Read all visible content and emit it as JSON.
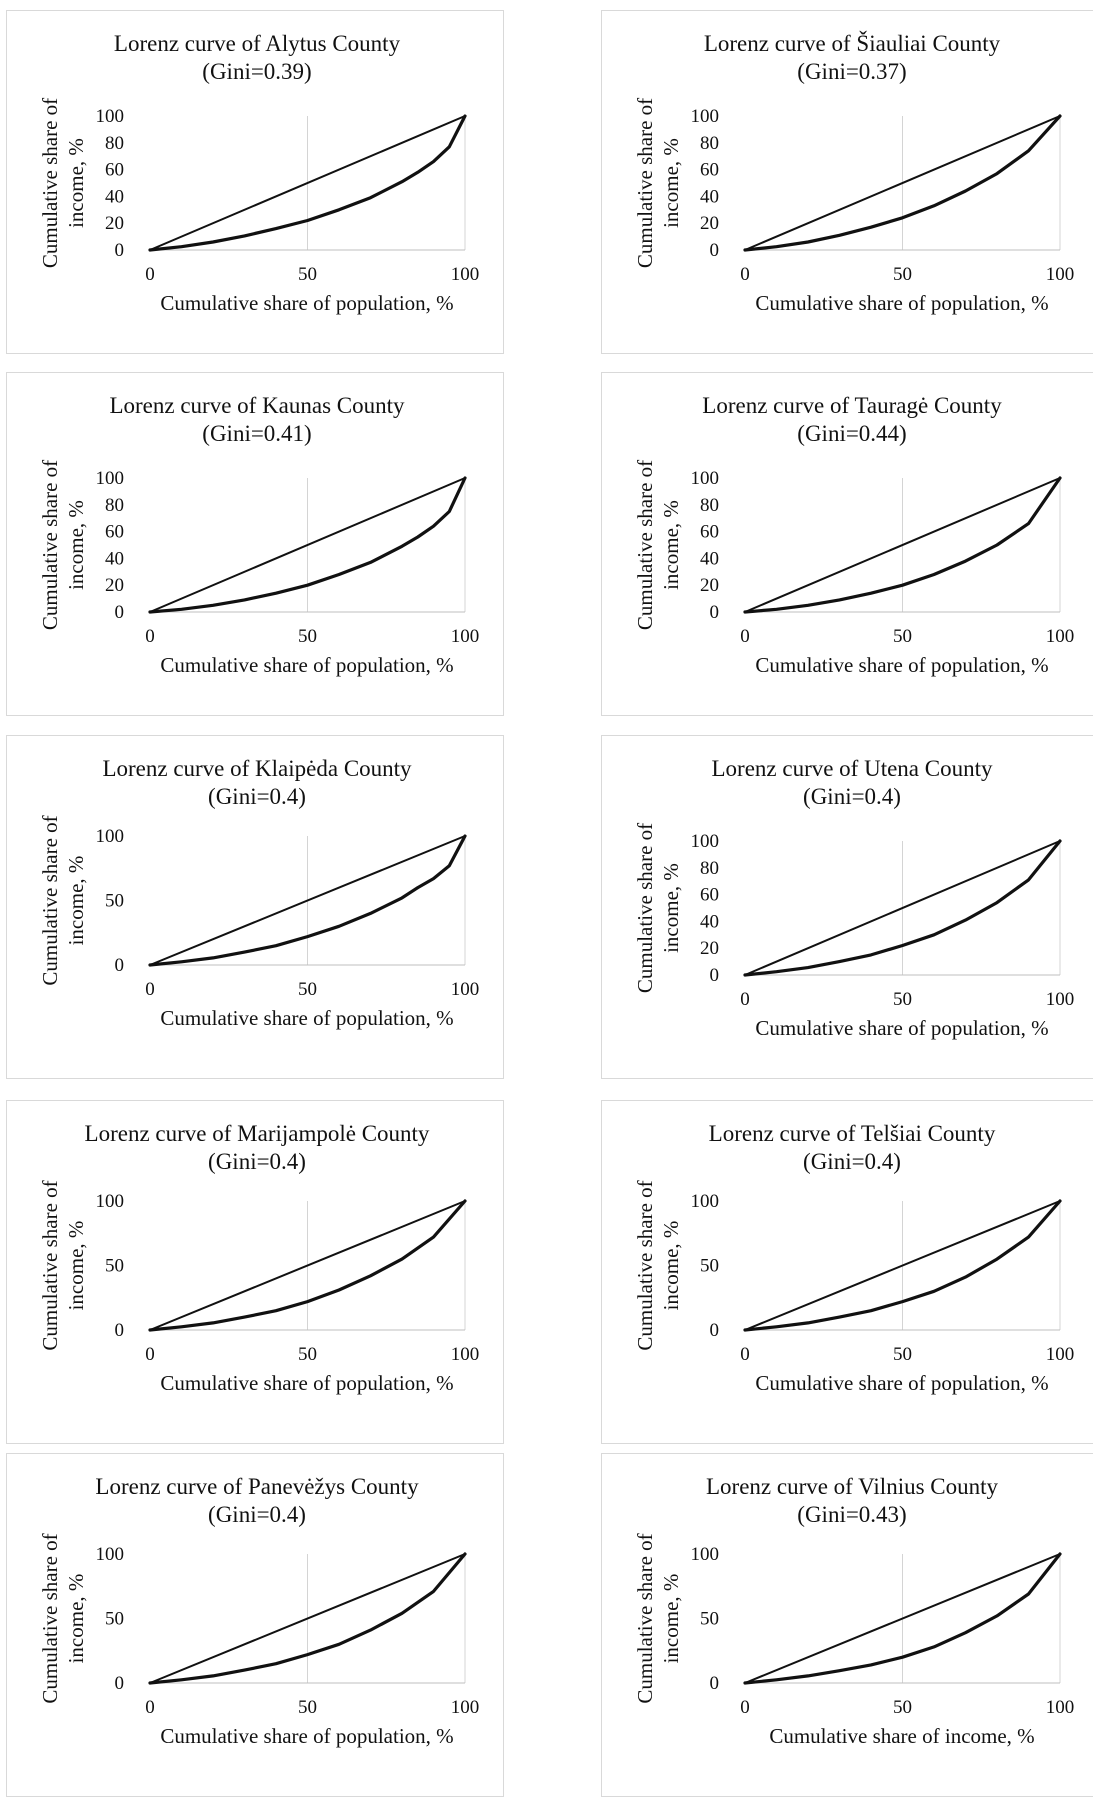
{
  "chart_data": [
    {
      "type": "line",
      "title": "Lorenz curve of Alytus County",
      "subtitle": "(Gini=0.39)",
      "xlabel": "Cumulative share of population, %",
      "ylabel_lines": [
        "Cumulative share of",
        "income, %"
      ],
      "xlim": [
        0,
        100
      ],
      "ylim": [
        0,
        100
      ],
      "xticks": [
        0,
        50,
        100
      ],
      "yticks": [
        0,
        20,
        40,
        60,
        80,
        100
      ],
      "grid": "vertical",
      "series": [
        {
          "x": [
            0,
            100
          ],
          "y": [
            0,
            100
          ]
        },
        {
          "x": [
            0,
            10,
            20,
            30,
            40,
            50,
            60,
            70,
            80,
            85,
            90,
            95,
            100
          ],
          "y": [
            0,
            2.5,
            6,
            10.5,
            16,
            22,
            30,
            39,
            51,
            58,
            66,
            77,
            100
          ]
        }
      ]
    },
    {
      "type": "line",
      "title": "Lorenz curve of Šiauliai County",
      "subtitle": "(Gini=0.37)",
      "xlabel": "Cumulative share of population, %",
      "ylabel_lines": [
        "Cumulative share of",
        "income, %"
      ],
      "xlim": [
        0,
        100
      ],
      "ylim": [
        0,
        100
      ],
      "xticks": [
        0,
        50,
        100
      ],
      "yticks": [
        0,
        20,
        40,
        60,
        80,
        100
      ],
      "grid": "vertical",
      "series": [
        {
          "x": [
            0,
            100
          ],
          "y": [
            0,
            100
          ]
        },
        {
          "x": [
            0,
            10,
            20,
            30,
            40,
            50,
            60,
            70,
            80,
            90,
            100
          ],
          "y": [
            0,
            2.5,
            6,
            11,
            17,
            24,
            33,
            44,
            57,
            74,
            100
          ]
        }
      ]
    },
    {
      "type": "line",
      "title": "Lorenz curve of Kaunas County",
      "subtitle": "(Gini=0.41)",
      "xlabel": "Cumulative share of population, %",
      "ylabel_lines": [
        "Cumulative share of",
        "income, %"
      ],
      "xlim": [
        0,
        100
      ],
      "ylim": [
        0,
        100
      ],
      "xticks": [
        0,
        50,
        100
      ],
      "yticks": [
        0,
        20,
        40,
        60,
        80,
        100
      ],
      "grid": "vertical",
      "series": [
        {
          "x": [
            0,
            100
          ],
          "y": [
            0,
            100
          ]
        },
        {
          "x": [
            0,
            10,
            20,
            30,
            40,
            50,
            60,
            70,
            80,
            85,
            90,
            95,
            100
          ],
          "y": [
            0,
            2,
            5,
            9,
            14,
            20,
            28,
            37,
            49,
            56,
            64,
            75,
            100
          ]
        }
      ]
    },
    {
      "type": "line",
      "title": "Lorenz curve of Tauragė County",
      "subtitle": "(Gini=0.44)",
      "xlabel": "Cumulative share of population, %",
      "ylabel_lines": [
        "Cumulative share of",
        "income, %"
      ],
      "xlim": [
        0,
        100
      ],
      "ylim": [
        0,
        100
      ],
      "xticks": [
        0,
        50,
        100
      ],
      "yticks": [
        0,
        20,
        40,
        60,
        80,
        100
      ],
      "grid": "vertical",
      "series": [
        {
          "x": [
            0,
            100
          ],
          "y": [
            0,
            100
          ]
        },
        {
          "x": [
            0,
            10,
            20,
            30,
            40,
            50,
            60,
            70,
            80,
            90,
            100
          ],
          "y": [
            0,
            2,
            5,
            9,
            14,
            20,
            28,
            38,
            50,
            66,
            100
          ]
        }
      ]
    },
    {
      "type": "line",
      "title": "Lorenz curve of Klaipėda County",
      "subtitle": "(Gini=0.4)",
      "xlabel": "Cumulative share of population, %",
      "ylabel_lines": [
        "Cumulative share of",
        "income, %"
      ],
      "xlim": [
        0,
        100
      ],
      "ylim": [
        0,
        100
      ],
      "xticks": [
        0,
        50,
        100
      ],
      "yticks": [
        0,
        50,
        100
      ],
      "grid": "vertical",
      "series": [
        {
          "x": [
            0,
            100
          ],
          "y": [
            0,
            100
          ]
        },
        {
          "x": [
            0,
            10,
            20,
            30,
            40,
            50,
            60,
            70,
            80,
            85,
            90,
            95,
            100
          ],
          "y": [
            0,
            2.5,
            5.5,
            10,
            15,
            22,
            30,
            40,
            52,
            60,
            67,
            77,
            100
          ]
        }
      ]
    },
    {
      "type": "line",
      "title": "Lorenz curve of Utena County",
      "subtitle": "(Gini=0.4)",
      "xlabel": "Cumulative share of population, %",
      "ylabel_lines": [
        "Cumulative share of",
        "income, %"
      ],
      "xlim": [
        0,
        100
      ],
      "ylim": [
        0,
        100
      ],
      "xticks": [
        0,
        50,
        100
      ],
      "yticks": [
        0,
        20,
        40,
        60,
        80,
        100
      ],
      "grid": "vertical",
      "series": [
        {
          "x": [
            0,
            100
          ],
          "y": [
            0,
            100
          ]
        },
        {
          "x": [
            0,
            10,
            20,
            30,
            40,
            50,
            60,
            70,
            80,
            90,
            100
          ],
          "y": [
            0,
            2.5,
            5.5,
            10,
            15,
            22,
            30,
            41,
            54,
            71,
            100
          ]
        }
      ]
    },
    {
      "type": "line",
      "title": "Lorenz curve of Marijampolė County",
      "subtitle": "(Gini=0.4)",
      "xlabel": "Cumulative share of population, %",
      "ylabel_lines": [
        "Cumulative share of",
        "income, %"
      ],
      "xlim": [
        0,
        100
      ],
      "ylim": [
        0,
        100
      ],
      "xticks": [
        0,
        50,
        100
      ],
      "yticks": [
        0,
        50,
        100
      ],
      "grid": "vertical",
      "series": [
        {
          "x": [
            0,
            100
          ],
          "y": [
            0,
            100
          ]
        },
        {
          "x": [
            0,
            10,
            20,
            30,
            40,
            50,
            60,
            70,
            80,
            90,
            100
          ],
          "y": [
            0,
            2.5,
            5.5,
            10,
            15,
            22,
            31,
            42,
            55,
            72,
            100
          ]
        }
      ]
    },
    {
      "type": "line",
      "title": "Lorenz curve of Telšiai County",
      "subtitle": "(Gini=0.4)",
      "xlabel": "Cumulative share of population, %",
      "ylabel_lines": [
        "Cumulative share of",
        "income, %"
      ],
      "xlim": [
        0,
        100
      ],
      "ylim": [
        0,
        100
      ],
      "xticks": [
        0,
        50,
        100
      ],
      "yticks": [
        0,
        50,
        100
      ],
      "grid": "vertical",
      "series": [
        {
          "x": [
            0,
            100
          ],
          "y": [
            0,
            100
          ]
        },
        {
          "x": [
            0,
            10,
            20,
            30,
            40,
            50,
            60,
            70,
            80,
            90,
            100
          ],
          "y": [
            0,
            2.5,
            5.5,
            10,
            15,
            22,
            30,
            41,
            55,
            72,
            100
          ]
        }
      ]
    },
    {
      "type": "line",
      "title": "Lorenz curve of Panevėžys County",
      "subtitle": "(Gini=0.4)",
      "xlabel": "Cumulative share of population, %",
      "ylabel_lines": [
        "Cumulative share of",
        "income, %"
      ],
      "xlim": [
        0,
        100
      ],
      "ylim": [
        0,
        100
      ],
      "xticks": [
        0,
        50,
        100
      ],
      "yticks": [
        0,
        50,
        100
      ],
      "grid": "vertical",
      "series": [
        {
          "x": [
            0,
            100
          ],
          "y": [
            0,
            100
          ]
        },
        {
          "x": [
            0,
            10,
            20,
            30,
            40,
            50,
            60,
            70,
            80,
            90,
            100
          ],
          "y": [
            0,
            2.5,
            5.5,
            10,
            15,
            22,
            30,
            41,
            54,
            71,
            100
          ]
        }
      ]
    },
    {
      "type": "line",
      "title": "Lorenz curve of Vilnius County",
      "subtitle": "(Gini=0.43)",
      "xlabel": "Cumulative share of income, %",
      "ylabel_lines": [
        "Cumulative share of",
        "income, %"
      ],
      "xlim": [
        0,
        100
      ],
      "ylim": [
        0,
        100
      ],
      "xticks": [
        0,
        50,
        100
      ],
      "yticks": [
        0,
        50,
        100
      ],
      "grid": "vertical",
      "series": [
        {
          "x": [
            0,
            100
          ],
          "y": [
            0,
            100
          ]
        },
        {
          "x": [
            0,
            10,
            20,
            30,
            40,
            50,
            60,
            70,
            80,
            90,
            100
          ],
          "y": [
            0,
            2.5,
            5.5,
            9.5,
            14,
            20,
            28,
            39,
            52,
            69,
            100
          ]
        }
      ]
    }
  ]
}
